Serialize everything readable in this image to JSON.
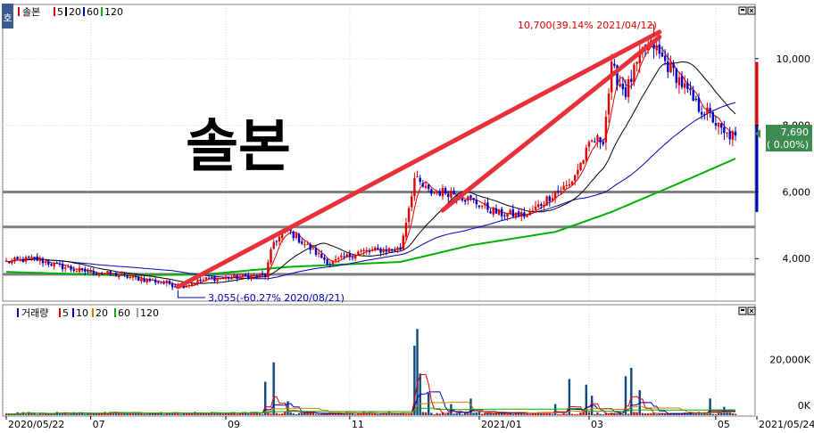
{
  "header": {
    "corner_label": "호",
    "stock_name": "솔본",
    "ma_labels": [
      "5",
      "20",
      "60",
      "120"
    ],
    "ma_colors": [
      "#e00000",
      "#000000",
      "#0000c0",
      "#00b000"
    ]
  },
  "watermark": "솔본",
  "chart_data": [
    {
      "type": "candlestick",
      "title": "솔본",
      "ylim": [
        2750,
        11600
      ],
      "y_ticks": [
        4000,
        6000,
        8000,
        10000
      ],
      "y_tick_labels": [
        "4,000",
        "6,000",
        "8,000",
        "10,000"
      ],
      "current_price": 7690,
      "current_price_label": "7,690",
      "current_change_label": "( 0.00%)",
      "high_annotation": {
        "text": "10,700(39.14% 2021/04/12)",
        "date_index": 230,
        "value": 10700
      },
      "low_annotation": {
        "text": "3,055(-60.27% 2020/08/21)",
        "date_index": 61,
        "value": 3055
      },
      "horizontal_lines": [
        6000,
        4950,
        3530
      ],
      "trend_lines": [
        {
          "from": [
            61,
            3150
          ],
          "to": [
            232,
            10800
          ]
        },
        {
          "from": [
            155,
            5450
          ],
          "to": [
            232,
            10650
          ]
        }
      ],
      "moving_averages": [
        {
          "name": "5",
          "color": "#e00000"
        },
        {
          "name": "20",
          "color": "#000000"
        },
        {
          "name": "60",
          "color": "#0000c0"
        },
        {
          "name": "120",
          "color": "#00b000"
        }
      ],
      "side_bar": {
        "color_up": "#e00000",
        "color_down": "#0000c0",
        "top": 9900,
        "mid": 8000,
        "bottom": 5400
      },
      "anchors": [
        [
          0,
          3900
        ],
        [
          10,
          4000
        ],
        [
          18,
          3800
        ],
        [
          25,
          3650
        ],
        [
          40,
          3500
        ],
        [
          58,
          3250
        ],
        [
          61,
          3150
        ],
        [
          72,
          3400
        ],
        [
          82,
          3450
        ],
        [
          92,
          3500
        ],
        [
          95,
          4500
        ],
        [
          100,
          4850
        ],
        [
          108,
          4300
        ],
        [
          115,
          3850
        ],
        [
          125,
          4200
        ],
        [
          140,
          4300
        ],
        [
          145,
          6400
        ],
        [
          150,
          6000
        ],
        [
          158,
          6000
        ],
        [
          165,
          5750
        ],
        [
          175,
          5350
        ],
        [
          185,
          5300
        ],
        [
          195,
          6000
        ],
        [
          200,
          6200
        ],
        [
          208,
          7500
        ],
        [
          212,
          7600
        ],
        [
          215,
          9700
        ],
        [
          220,
          9000
        ],
        [
          226,
          10200
        ],
        [
          230,
          10400
        ],
        [
          232,
          10100
        ],
        [
          238,
          9500
        ],
        [
          245,
          8600
        ],
        [
          250,
          8300
        ],
        [
          255,
          7700
        ],
        [
          259,
          7690
        ]
      ],
      "ma120_anchors": [
        [
          0,
          3600
        ],
        [
          40,
          3500
        ],
        [
          70,
          3520
        ],
        [
          100,
          3750
        ],
        [
          140,
          3900
        ],
        [
          165,
          4400
        ],
        [
          195,
          4800
        ],
        [
          215,
          5400
        ],
        [
          240,
          6300
        ],
        [
          259,
          7000
        ]
      ],
      "n_days": 260
    },
    {
      "type": "bar",
      "title": "거래량",
      "ma_labels": [
        "5",
        "10",
        "20",
        "60",
        "120"
      ],
      "ma_colors": [
        "#e00000",
        "#0000c0",
        "#d08000",
        "#00b000",
        "#a0a0a0"
      ],
      "ylim": [
        0,
        33000
      ],
      "y_ticks": [
        0,
        20000
      ],
      "y_tick_labels": [
        "0K",
        "20,000K"
      ],
      "spikes": [
        [
          92,
          12000
        ],
        [
          95,
          19000
        ],
        [
          100,
          5000
        ],
        [
          145,
          25000
        ],
        [
          146,
          31000
        ],
        [
          147,
          15000
        ],
        [
          150,
          8000
        ],
        [
          158,
          4000
        ],
        [
          165,
          6000
        ],
        [
          195,
          4000
        ],
        [
          200,
          13000
        ],
        [
          206,
          11000
        ],
        [
          208,
          7000
        ],
        [
          220,
          14000
        ],
        [
          222,
          17000
        ],
        [
          225,
          9000
        ],
        [
          250,
          6000
        ],
        [
          255,
          3000
        ]
      ]
    }
  ],
  "x_axis": {
    "tick_labels": [
      "2020/05/22",
      "07",
      "09",
      "11",
      "2021/01",
      "03",
      "05",
      "2021/05/24"
    ],
    "tick_indices": [
      0,
      30,
      78,
      122,
      168,
      207,
      252,
      270
    ]
  }
}
